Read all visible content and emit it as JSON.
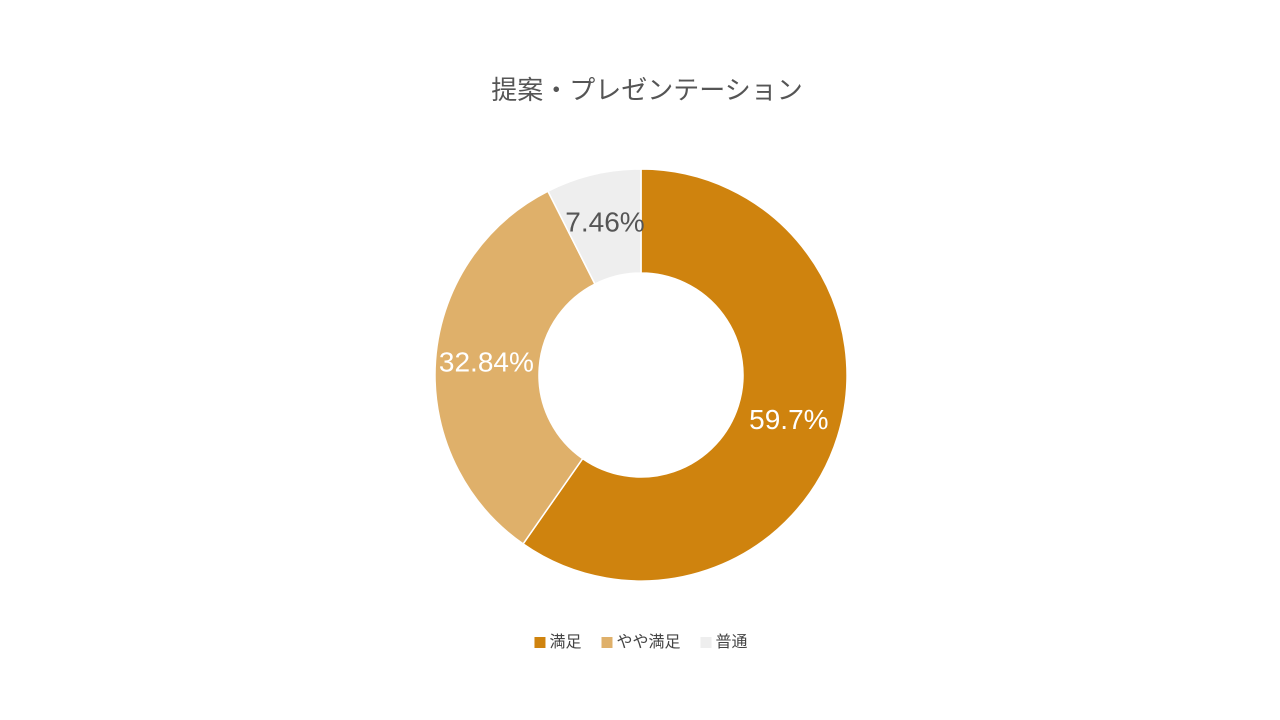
{
  "chart_data": {
    "type": "donut",
    "title": "提案・プレゼンテーション",
    "categories": [
      "満足",
      "やや満足",
      "普通"
    ],
    "values": [
      59.7,
      32.84,
      7.46
    ],
    "value_labels": [
      "59.7%",
      "32.84%",
      "7.46%"
    ],
    "colors": [
      "#cf830e",
      "#dfb06a",
      "#eeeeee"
    ],
    "legend": "bottom"
  }
}
